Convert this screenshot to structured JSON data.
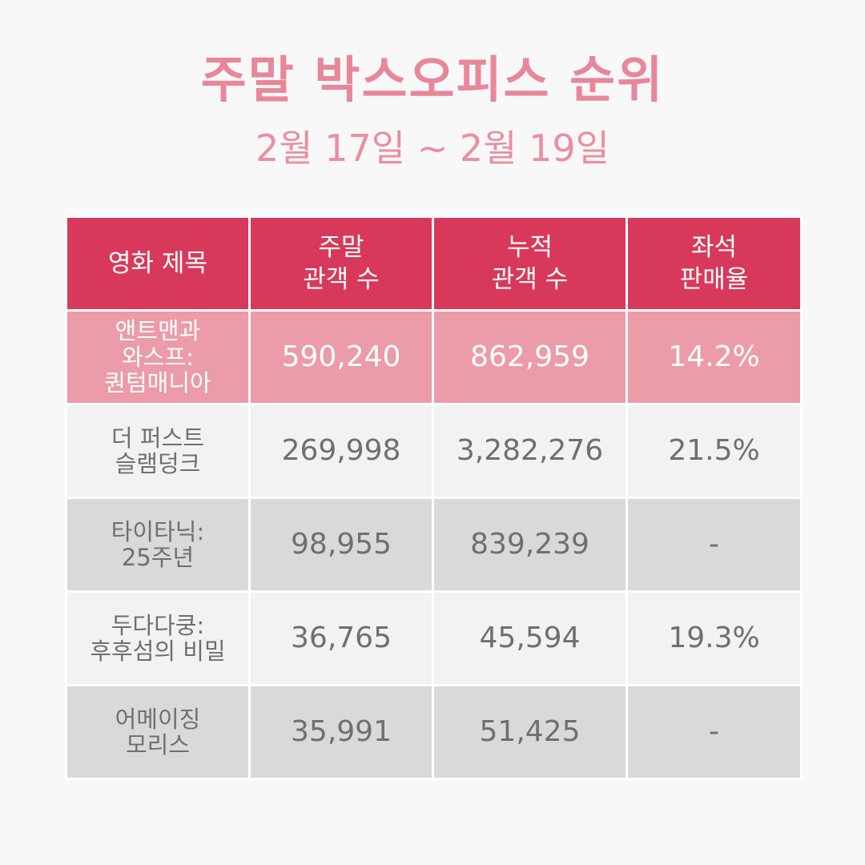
{
  "header": {
    "title": "주말 박스오피스 순위",
    "date_range": "2월 17일 ~ 2월 19일"
  },
  "table": {
    "columns": [
      {
        "lines": [
          "영화 제목"
        ]
      },
      {
        "lines": [
          "주말",
          "관객 수"
        ]
      },
      {
        "lines": [
          "누적",
          "관객 수"
        ]
      },
      {
        "lines": [
          "좌석",
          "판매율"
        ]
      }
    ],
    "rows": [
      {
        "title_lines": [
          "앤트맨과",
          "와스프:",
          "퀀텀매니아"
        ],
        "weekend_audience": "590,240",
        "cumulative_audience": "862,959",
        "seat_sales_rate": "14.2%"
      },
      {
        "title_lines": [
          "더 퍼스트",
          "슬램덩크"
        ],
        "weekend_audience": "269,998",
        "cumulative_audience": "3,282,276",
        "seat_sales_rate": "21.5%"
      },
      {
        "title_lines": [
          "타이타닉:",
          "25주년"
        ],
        "weekend_audience": "98,955",
        "cumulative_audience": "839,239",
        "seat_sales_rate": "-"
      },
      {
        "title_lines": [
          "두다다쿵:",
          "후후섬의 비밀"
        ],
        "weekend_audience": "36,765",
        "cumulative_audience": "45,594",
        "seat_sales_rate": "19.3%"
      },
      {
        "title_lines": [
          "어메이징",
          "모리스"
        ],
        "weekend_audience": "35,991",
        "cumulative_audience": "51,425",
        "seat_sales_rate": "-"
      }
    ]
  },
  "colors": {
    "title": "#e9869a",
    "header_bg": "#d8395a",
    "highlight_row_bg": "#ec9ba8",
    "light_row_bg": "#f2f2f2",
    "dark_row_bg": "#d9d9d9",
    "body_text": "#6f6f6f"
  }
}
